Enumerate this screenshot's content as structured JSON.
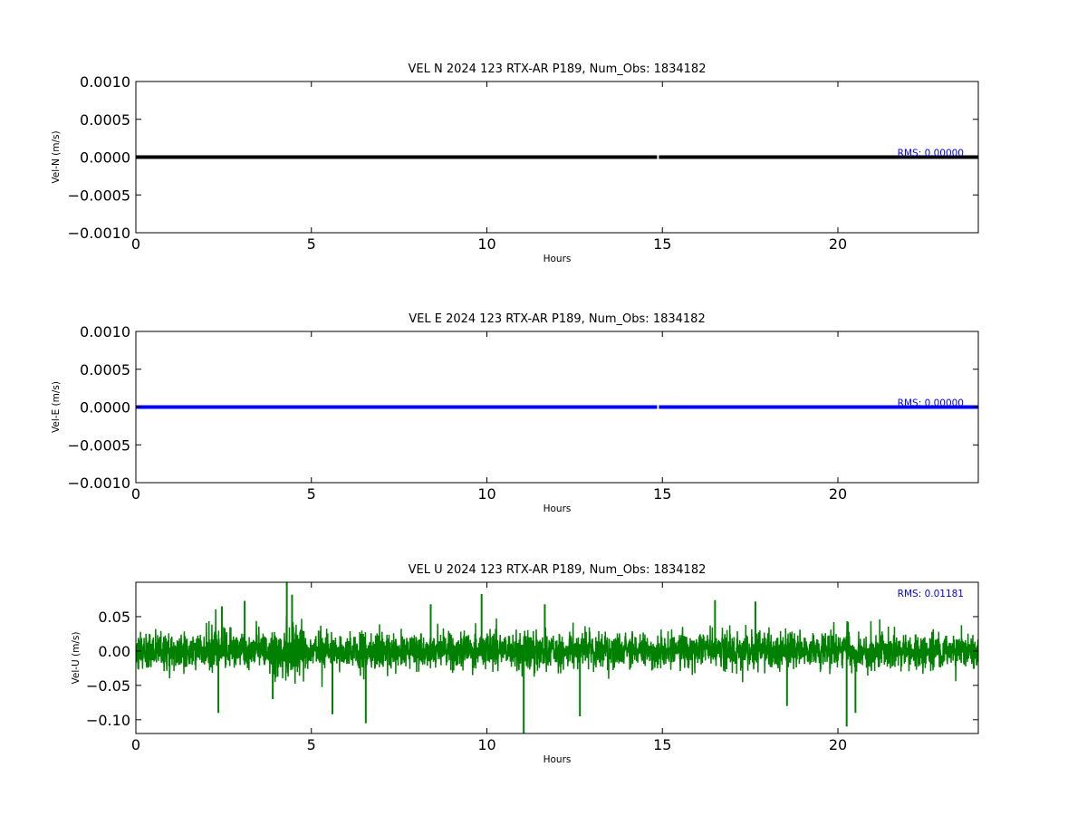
{
  "chart_data": [
    {
      "type": "line",
      "title": "VEL N 2024 123 RTX-AR  P189, Num_Obs: 1834182",
      "xlabel": "Hours",
      "ylabel": "Vel-N (m/s)",
      "xlim": [
        0,
        24
      ],
      "ylim": [
        -0.001,
        0.001
      ],
      "xticks": [
        0,
        5,
        10,
        15,
        20
      ],
      "xtick_labels": [
        "0",
        "5",
        "10",
        "15",
        "20"
      ],
      "yticks": [
        0.001,
        0.0005,
        0,
        -0.0005,
        -0.001
      ],
      "ytick_labels": [
        "0.0010",
        "0.0005",
        "0.0000",
        "−0.0005",
        "−0.0010"
      ],
      "grid": false,
      "color": "#000000",
      "annotation": "RMS:  0.00000",
      "annotation_color": "#0000ff",
      "series": [
        {
          "x": [
            0,
            14.85
          ],
          "y": [
            0,
            0
          ]
        },
        {
          "x": [
            14.9,
            24
          ],
          "y": [
            0,
            0
          ]
        }
      ]
    },
    {
      "type": "line",
      "title": "VEL E 2024 123 RTX-AR  P189, Num_Obs: 1834182",
      "xlabel": "Hours",
      "ylabel": "Vel-E (m/s)",
      "xlim": [
        0,
        24
      ],
      "ylim": [
        -0.001,
        0.001
      ],
      "xticks": [
        0,
        5,
        10,
        15,
        20
      ],
      "xtick_labels": [
        "0",
        "5",
        "10",
        "15",
        "20"
      ],
      "yticks": [
        0.001,
        0.0005,
        0,
        -0.0005,
        -0.001
      ],
      "ytick_labels": [
        "0.0010",
        "0.0005",
        "0.0000",
        "−0.0005",
        "−0.0010"
      ],
      "grid": false,
      "color": "#0000ff",
      "annotation": "RMS:  0.00000",
      "annotation_color": "#0000ff",
      "series": [
        {
          "x": [
            0,
            14.85
          ],
          "y": [
            0,
            0
          ]
        },
        {
          "x": [
            14.9,
            24
          ],
          "y": [
            0,
            0
          ]
        }
      ]
    },
    {
      "type": "line",
      "title": "VEL U 2024 123 RTX-AR  P189, Num_Obs: 1834182",
      "xlabel": "Hours",
      "ylabel": "Vel-U (m/s)",
      "xlim": [
        0,
        24
      ],
      "ylim": [
        -0.12,
        0.1
      ],
      "xticks": [
        0,
        5,
        10,
        15,
        20
      ],
      "xtick_labels": [
        "0",
        "5",
        "10",
        "15",
        "20"
      ],
      "yticks": [
        0.05,
        0,
        -0.05,
        -0.1
      ],
      "ytick_labels": [
        "0.05",
        "0.00",
        "−0.05",
        "−0.10"
      ],
      "grid": false,
      "color": "#008000",
      "annotation": "RMS:  0.01181",
      "annotation_color": "#0000ff",
      "rms": 0.01181,
      "spikes": [
        {
          "x": 2.35,
          "y": -0.09
        },
        {
          "x": 2.45,
          "y": 0.065
        },
        {
          "x": 3.1,
          "y": 0.073
        },
        {
          "x": 3.9,
          "y": -0.07
        },
        {
          "x": 4.3,
          "y": 0.1
        },
        {
          "x": 4.45,
          "y": 0.082
        },
        {
          "x": 5.6,
          "y": -0.092
        },
        {
          "x": 6.55,
          "y": -0.105
        },
        {
          "x": 8.4,
          "y": 0.068
        },
        {
          "x": 9.85,
          "y": 0.083
        },
        {
          "x": 11.05,
          "y": -0.12
        },
        {
          "x": 11.65,
          "y": 0.068
        },
        {
          "x": 12.65,
          "y": -0.095
        },
        {
          "x": 16.5,
          "y": 0.074
        },
        {
          "x": 17.65,
          "y": 0.072
        },
        {
          "x": 18.55,
          "y": -0.08
        },
        {
          "x": 20.25,
          "y": -0.11
        },
        {
          "x": 20.5,
          "y": -0.09
        }
      ]
    }
  ]
}
